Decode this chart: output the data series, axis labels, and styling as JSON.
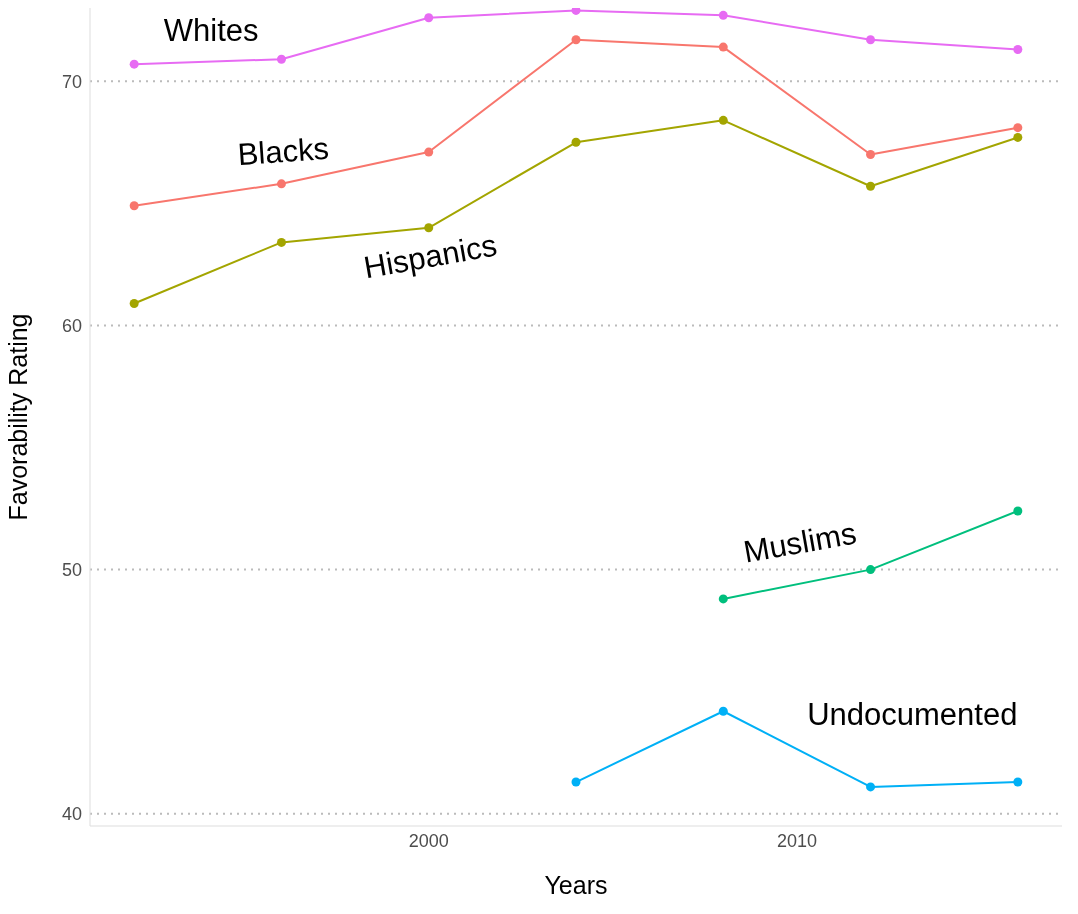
{
  "chart_data": {
    "type": "line",
    "xlabel": "Years",
    "ylabel": "Favorability Rating",
    "x": [
      1992,
      1996,
      2000,
      2004,
      2008,
      2012,
      2016
    ],
    "series": [
      {
        "name": "Whites",
        "color": "#e76bf3",
        "values": [
          70.7,
          70.9,
          72.6,
          72.9,
          72.7,
          71.7,
          71.3
        ]
      },
      {
        "name": "Blacks",
        "color": "#f8766d",
        "values": [
          64.9,
          65.8,
          67.1,
          71.7,
          71.4,
          67.0,
          68.1
        ]
      },
      {
        "name": "Hispanics",
        "color": "#a3a500",
        "values": [
          60.9,
          63.4,
          64.0,
          67.5,
          68.4,
          65.7,
          67.7
        ]
      },
      {
        "name": "Muslims",
        "color": "#00bf7d",
        "values": [
          null,
          null,
          null,
          null,
          48.8,
          50.0,
          52.4
        ]
      },
      {
        "name": "Undocumented",
        "color": "#00b0f6",
        "values": [
          null,
          null,
          null,
          41.3,
          44.2,
          41.1,
          41.3
        ]
      }
    ],
    "xlim": [
      1990.8,
      2017.2
    ],
    "ylim": [
      39.5,
      73
    ],
    "xticks": [
      2000,
      2010
    ],
    "yticks": [
      40,
      50,
      60,
      70
    ],
    "grid": "y",
    "marker": "circle",
    "line_style": "solid",
    "legend": false
  }
}
